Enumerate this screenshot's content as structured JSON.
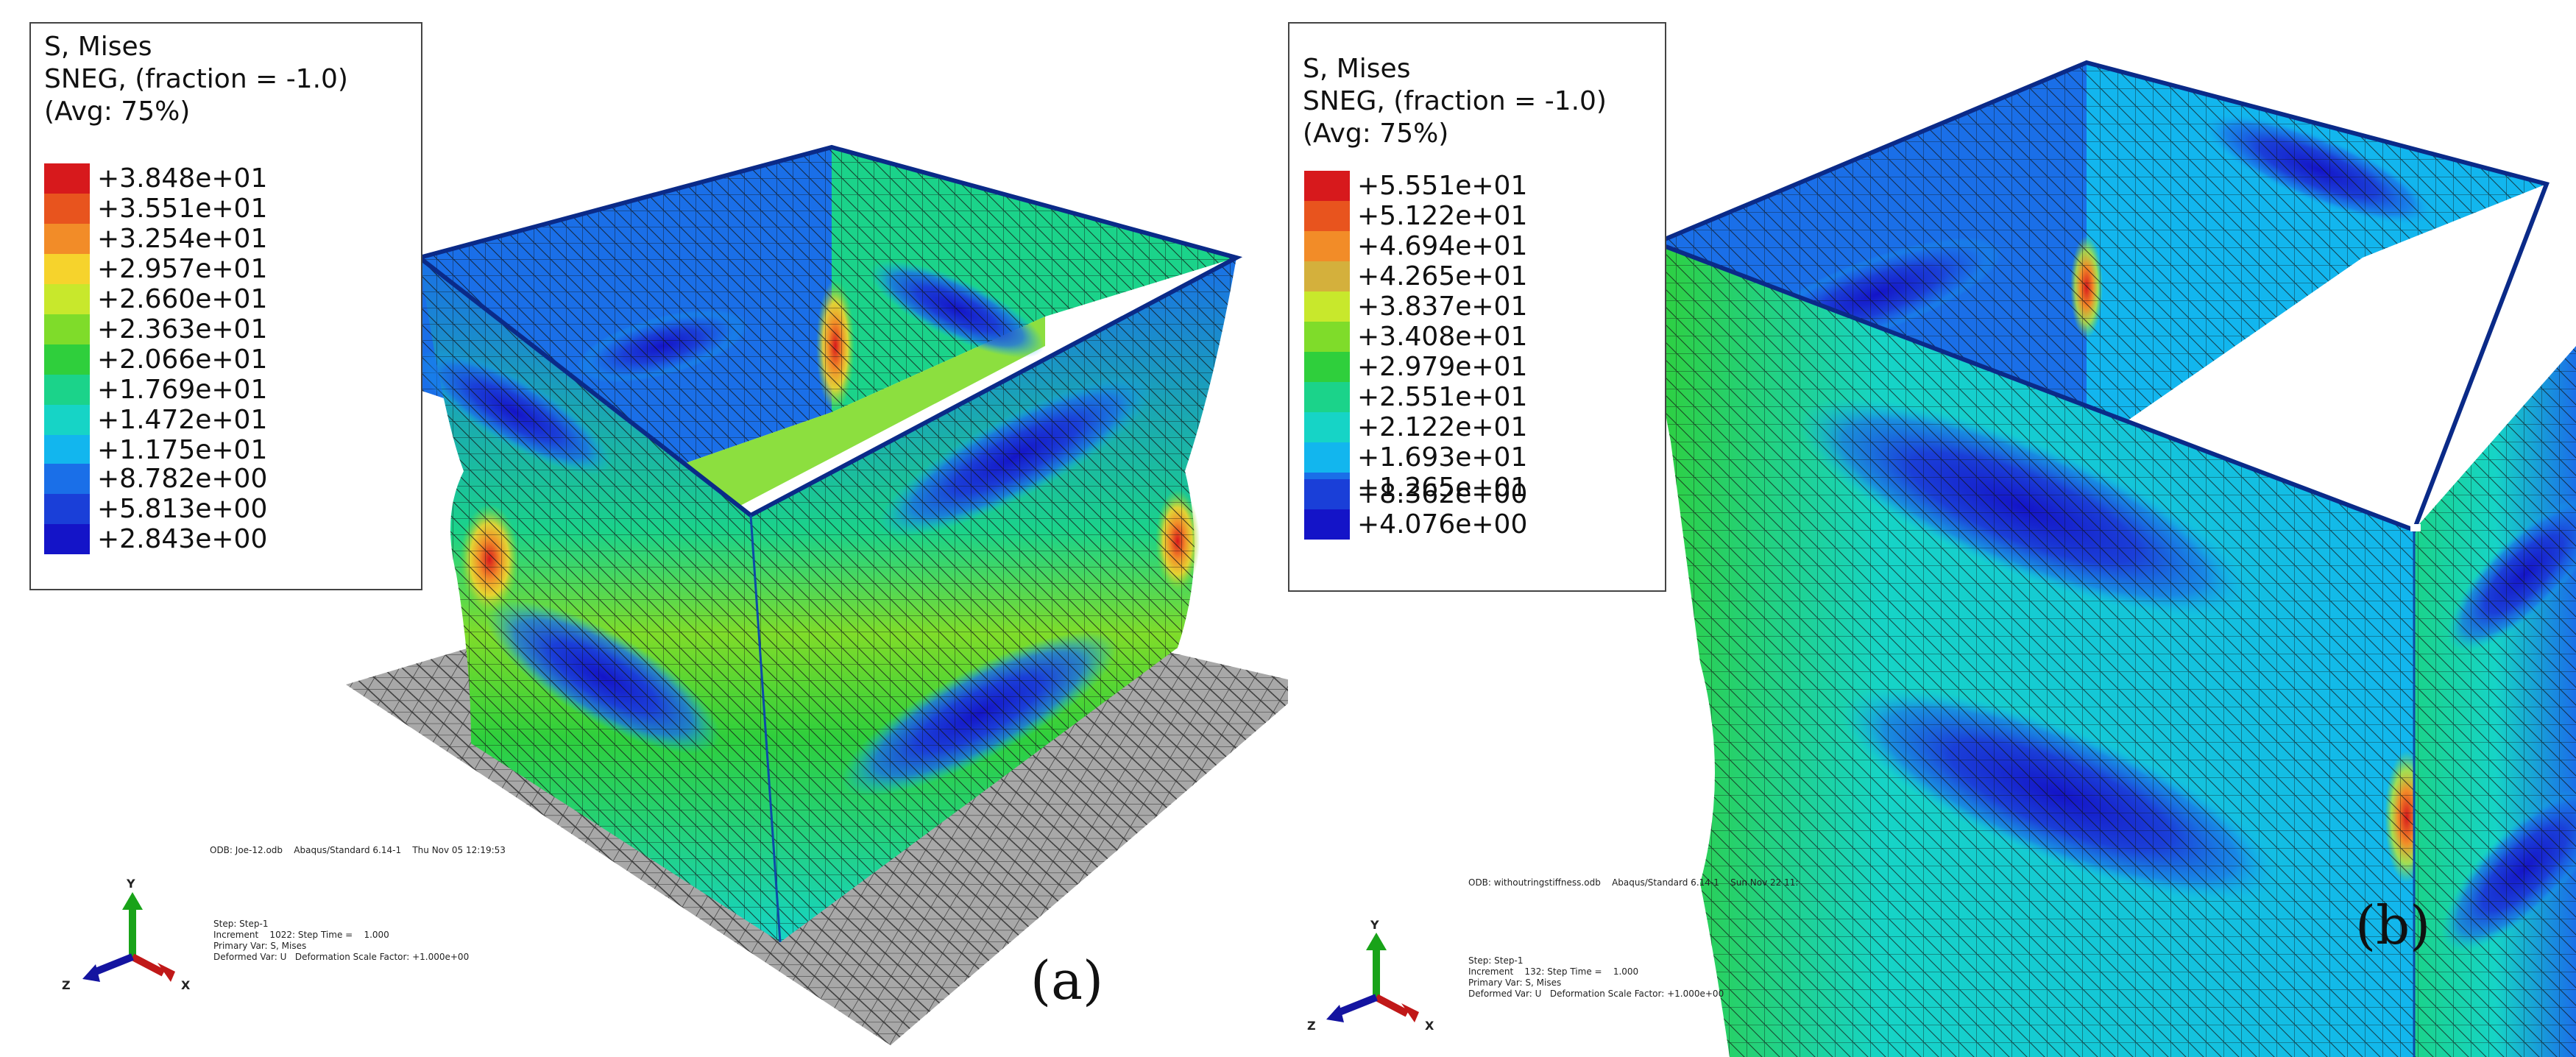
{
  "colors": {
    "mises_scale": [
      "#d7191c",
      "#e8541e",
      "#f28c28",
      "#f6d32c",
      "#c8e82c",
      "#7fdc2a",
      "#2fcf3c",
      "#1bd38a",
      "#16d4c6",
      "#12b6ee",
      "#1a6fe8",
      "#1a3fd8",
      "#1414c8"
    ],
    "mesh_line": "#111111",
    "ground": "#9a9a9a"
  },
  "icons": [
    "triad-icon"
  ],
  "panels": [
    {
      "legend": {
        "title_line1": "S, Mises",
        "title_line2": "SNEG, (fraction = -1.0)",
        "title_line3": "(Avg: 75%)",
        "values": [
          "+3.848e+01",
          "+3.551e+01",
          "+3.254e+01",
          "+2.957e+01",
          "+2.660e+01",
          "+2.363e+01",
          "+2.066e+01",
          "+1.769e+01",
          "+1.472e+01",
          "+1.175e+01",
          "+8.782e+00",
          "+5.813e+00",
          "+2.843e+00"
        ]
      },
      "info_odb": "ODB: Joe-12.odb    Abaqus/Standard 6.14-1    Thu Nov 05 12:19:53",
      "info_step": "Step: Step-1",
      "info_increment": "Increment    1022: Step Time =    1.000",
      "info_primary": "Primary Var: S, Mises",
      "info_deformed": "Deformed Var: U   Deformation Scale Factor: +1.000e+00",
      "triad": {
        "y": "Y",
        "x": "X",
        "z": "Z"
      },
      "label": "(a)"
    },
    {
      "legend": {
        "title_line1": "S, Mises",
        "title_line2": "SNEG, (fraction = -1.0)",
        "title_line3": "(Avg: 75%)",
        "values": [
          "+5.551e+01",
          "+5.122e+01",
          "+4.694e+01",
          "+4.265e+01",
          "+3.837e+01",
          "+3.408e+01",
          "+2.979e+01",
          "+2.551e+01",
          "+2.122e+01",
          "+1.693e+01",
          "+1.265e+01",
          "+8.362e+00",
          "+4.076e+00"
        ]
      },
      "info_odb": "ODB: withoutringstiffness.odb    Abaqus/Standard 6.14-1    Sun Nov 22 11:",
      "info_step": "Step: Step-1",
      "info_increment": "Increment    132: Step Time =    1.000",
      "info_primary": "Primary Var: S, Mises",
      "info_deformed": "Deformed Var: U   Deformation Scale Factor: +1.000e+00",
      "triad": {
        "y": "Y",
        "x": "X",
        "z": "Z"
      },
      "label": "(b)"
    }
  ]
}
